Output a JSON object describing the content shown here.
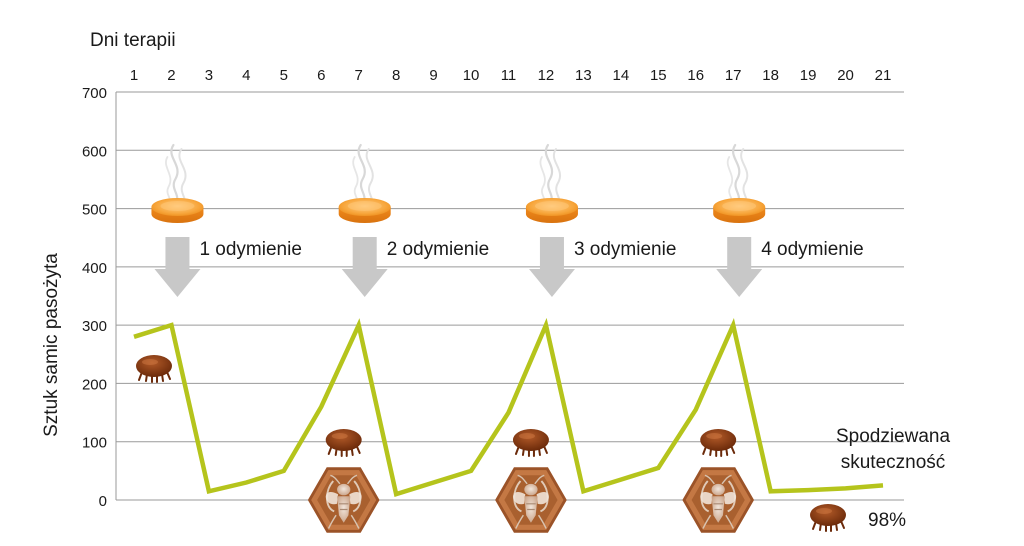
{
  "chart_data": {
    "type": "line",
    "xlabel": "Dni terapii",
    "ylabel": "Sztuk samic pasożyta",
    "x": [
      1,
      2,
      3,
      4,
      5,
      6,
      7,
      8,
      9,
      10,
      11,
      12,
      13,
      14,
      15,
      16,
      17,
      18,
      19,
      20,
      21
    ],
    "x_tick_labels": [
      "1",
      "2",
      "3",
      "4",
      "5",
      "6",
      "7",
      "8",
      "9",
      "10",
      "11",
      "12",
      "13",
      "14",
      "15",
      "16",
      "17",
      "18",
      "19",
      "20",
      "21"
    ],
    "y_tick_labels": [
      "0",
      "100",
      "200",
      "300",
      "400",
      "500",
      "600",
      "700"
    ],
    "ylim": [
      0,
      700
    ],
    "grid": true,
    "series": [
      {
        "values": [
          280,
          300,
          15,
          30,
          50,
          160,
          300,
          10,
          30,
          50,
          150,
          300,
          15,
          35,
          55,
          155,
          300,
          15,
          17,
          20,
          25
        ],
        "color": "#b5c41c"
      }
    ],
    "treatments": [
      {
        "day": 2,
        "label": "1 odymienie"
      },
      {
        "day": 7,
        "label": "2 odymienie"
      },
      {
        "day": 12,
        "label": "3 odymienie"
      },
      {
        "day": 17,
        "label": "4 odymienie"
      }
    ],
    "annotations": {
      "efficacy_label_line1": "Spodziewana",
      "efficacy_label_line2": "skuteczność",
      "efficacy_value": "98%"
    },
    "icons": [
      "smoking-tablet-icon",
      "down-arrow-icon",
      "mite-icon",
      "bee-cell-icon"
    ],
    "colors": {
      "line": "#b5c41c",
      "grid": "#9a9a9a",
      "arrow": "#c8c8c8",
      "tablet": "#f39a2a",
      "mite": "#8a3a14",
      "cell": "#b0673a"
    }
  }
}
